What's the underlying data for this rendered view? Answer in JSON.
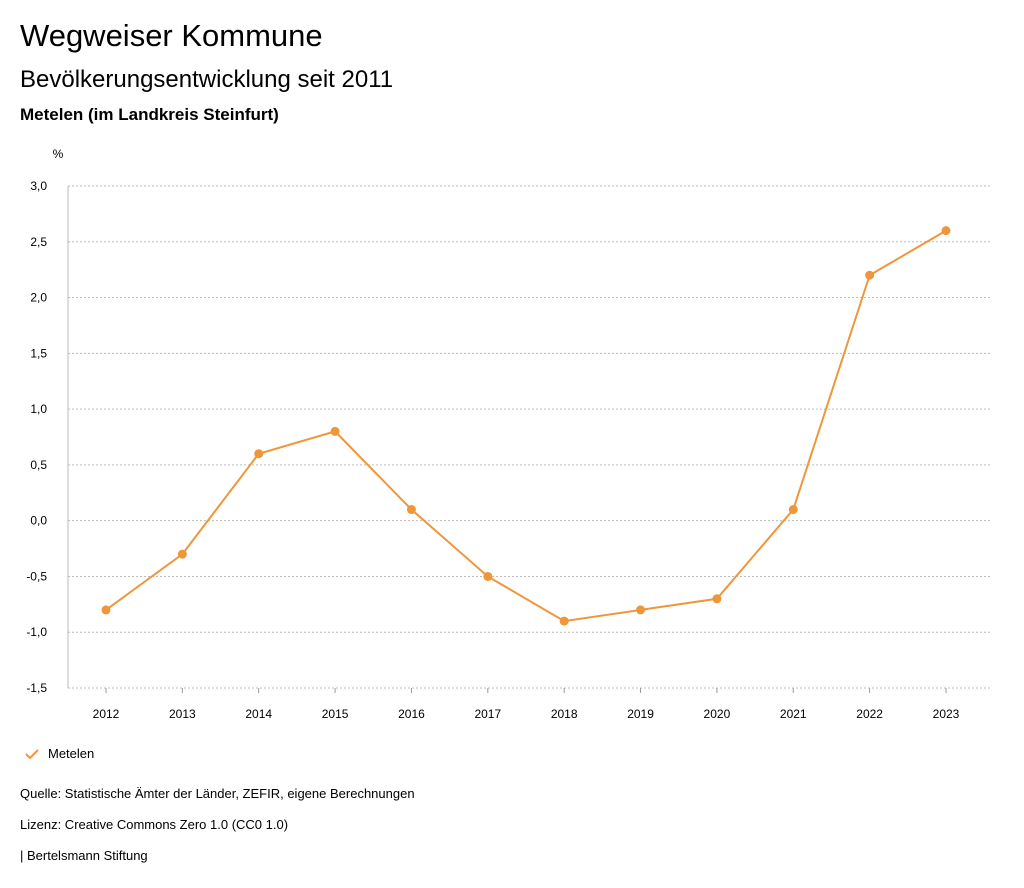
{
  "header": {
    "title": "Wegweiser Kommune",
    "subtitle": "Bevölkerungsentwicklung seit 2011",
    "region": "Metelen (im Landkreis Steinfurt)"
  },
  "footer": {
    "source": "Quelle: Statistische Ämter der Länder, ZEFIR, eigene Berechnungen",
    "license": "Lizenz: Creative Commons Zero 1.0 (CC0 1.0)",
    "brand": "| Bertelsmann Stiftung"
  },
  "colors": {
    "series": "#f0963a",
    "grid": "#bbbbbb",
    "text": "#000000"
  },
  "chart_data": {
    "type": "line",
    "x": [
      "2012",
      "2013",
      "2014",
      "2015",
      "2016",
      "2017",
      "2018",
      "2019",
      "2020",
      "2021",
      "2022",
      "2023"
    ],
    "series": [
      {
        "name": "Metelen",
        "values": [
          -0.8,
          -0.3,
          0.6,
          0.8,
          0.1,
          -0.5,
          -0.9,
          -0.8,
          -0.7,
          0.1,
          2.2,
          2.6
        ]
      }
    ],
    "ylabel": "%",
    "ylim": [
      -1.5,
      3.0
    ],
    "yticks": [
      3.0,
      2.5,
      2.0,
      1.5,
      1.0,
      0.5,
      0.0,
      -0.5,
      -1.0,
      -1.5
    ],
    "ytick_labels": [
      "3,0",
      "2,5",
      "2,0",
      "1,5",
      "1,0",
      "0,5",
      "0,0",
      "-0,5",
      "-1,0",
      "-1,5"
    ],
    "grid": true,
    "legend_position": "bottom-left"
  }
}
